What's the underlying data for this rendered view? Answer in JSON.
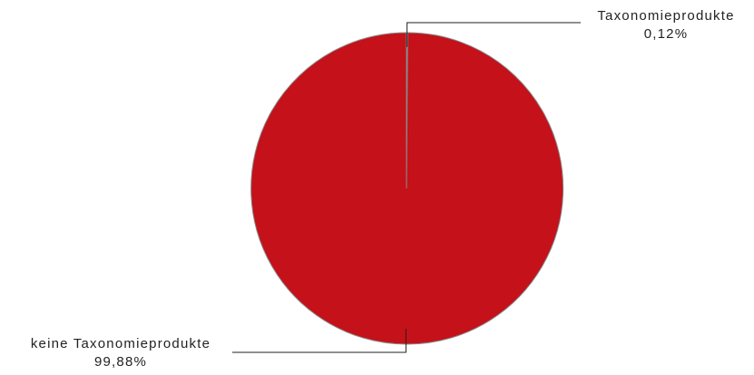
{
  "chart_data": {
    "type": "pie",
    "title": "",
    "slices": [
      {
        "label": "Taxonomieprodukte",
        "value_label": "0,12%",
        "value": 0.12,
        "color": "#a0a0a0"
      },
      {
        "label": "keine Taxonomieprodukte",
        "value_label": "99,88%",
        "value": 99.88,
        "color": "#c4111a"
      }
    ],
    "start_angle": "top",
    "direction": "clockwise",
    "legend": "none",
    "labels": "outside with leader lines"
  }
}
